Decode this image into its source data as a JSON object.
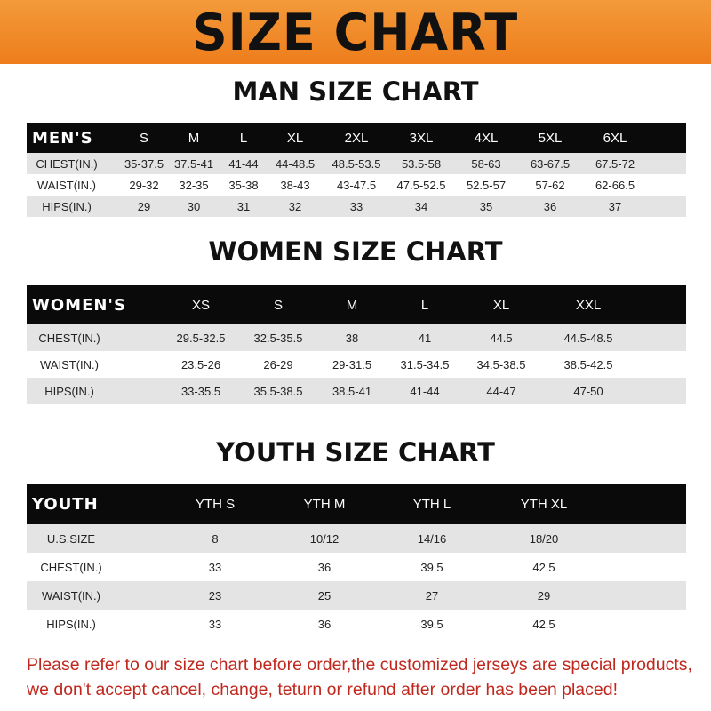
{
  "title": "SIZE CHART",
  "men": {
    "title": "MAN SIZE CHART",
    "header": [
      "MEN'S",
      "S",
      "M",
      "L",
      "XL",
      "2XL",
      "3XL",
      "4XL",
      "5XL",
      "6XL"
    ],
    "rows": [
      [
        "CHEST(IN.)",
        "35-37.5",
        "37.5-41",
        "41-44",
        "44-48.5",
        "48.5-53.5",
        "53.5-58",
        "58-63",
        "63-67.5",
        "67.5-72"
      ],
      [
        "WAIST(IN.)",
        "29-32",
        "32-35",
        "35-38",
        "38-43",
        "43-47.5",
        "47.5-52.5",
        "52.5-57",
        "57-62",
        "62-66.5"
      ],
      [
        "HIPS(IN.)",
        "29",
        "30",
        "31",
        "32",
        "33",
        "34",
        "35",
        "36",
        "37"
      ]
    ]
  },
  "women": {
    "title": "WOMEN SIZE CHART",
    "header": [
      "WOMEN'S",
      "XS",
      "S",
      "M",
      "L",
      "XL",
      "XXL"
    ],
    "rows": [
      [
        "CHEST(IN.)",
        "29.5-32.5",
        "32.5-35.5",
        "38",
        "41",
        "44.5",
        "44.5-48.5"
      ],
      [
        "WAIST(IN.)",
        "23.5-26",
        "26-29",
        "29-31.5",
        "31.5-34.5",
        "34.5-38.5",
        "38.5-42.5"
      ],
      [
        "HIPS(IN.)",
        "33-35.5",
        "35.5-38.5",
        "38.5-41",
        "41-44",
        "44-47",
        "47-50"
      ]
    ]
  },
  "youth": {
    "title": "YOUTH SIZE CHART",
    "header": [
      "YOUTH",
      "YTH S",
      "YTH M",
      "YTH L",
      "YTH XL"
    ],
    "rows": [
      [
        "U.S.SIZE",
        "8",
        "10/12",
        "14/16",
        "18/20"
      ],
      [
        "CHEST(IN.)",
        "33",
        "36",
        "39.5",
        "42.5"
      ],
      [
        "WAIST(IN.)",
        "23",
        "25",
        "27",
        "29"
      ],
      [
        "HIPS(IN.)",
        "33",
        "36",
        "39.5",
        "42.5"
      ]
    ]
  },
  "notice": {
    "line1": "Please refer to our size chart before order,the customized jerseys are special products,",
    "line2": "we don't accept cancel, change, teturn or refund after order has been placed!"
  },
  "colors": {
    "banner": "#ee7d1c",
    "header_row": "#0a0a0a",
    "stripe": "#e4e4e4",
    "notice": "#c0281e"
  }
}
